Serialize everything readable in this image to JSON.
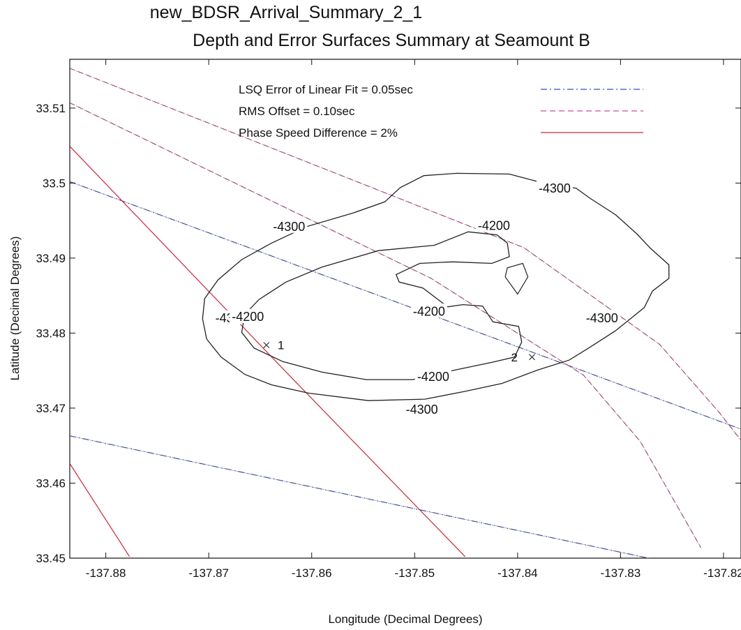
{
  "title_line1": "new_BDSR_Arrival_Summary_2_1",
  "title_line2": "Depth and Error Surfaces Summary at Seamount B",
  "chart_data": {
    "type": "line",
    "xlabel": "Longitude (Decimal Degrees)",
    "ylabel": "Latitude (Decimal Degrees)",
    "xlim": [
      -137.8835,
      -137.8183
    ],
    "ylim": [
      33.45,
      33.5165
    ],
    "xticks": [
      -137.88,
      -137.87,
      -137.86,
      -137.85,
      -137.84,
      -137.83,
      -137.82
    ],
    "xtick_labels": [
      "-137.88",
      "-137.87",
      "-137.86",
      "-137.85",
      "-137.84",
      "-137.83",
      "-137.82"
    ],
    "yticks": [
      33.45,
      33.46,
      33.47,
      33.48,
      33.49,
      33.5,
      33.51
    ],
    "ytick_labels": [
      "33.45",
      "33.46",
      "33.47",
      "33.48",
      "33.49",
      "33.5",
      "33.51"
    ],
    "grid": false,
    "legend_position": "top",
    "legend": [
      {
        "text": "LSQ Error of Linear Fit = 0.05sec",
        "style": "dash-dot",
        "color": "#3a4fc0"
      },
      {
        "text": "RMS Offset = 0.10sec",
        "style": "dashed",
        "color": "#d04a9a"
      },
      {
        "text": "Phase Speed Difference = 2%",
        "style": "solid",
        "color": "#c8283c"
      }
    ],
    "error_lines": [
      {
        "kind": "lsq",
        "points": [
          [
            -137.8835,
            33.5002
          ],
          [
            -137.8183,
            33.4672
          ]
        ]
      },
      {
        "kind": "lsq",
        "points": [
          [
            -137.8835,
            33.4663
          ],
          [
            -137.8183,
            33.4474
          ]
        ]
      },
      {
        "kind": "rms",
        "points": [
          [
            -137.8835,
            33.5153
          ],
          [
            -137.8394,
            33.4914
          ],
          [
            -137.8262,
            33.4785
          ],
          [
            -137.8204,
            33.4694
          ],
          [
            -137.8183,
            33.4657
          ]
        ]
      },
      {
        "kind": "rms",
        "points": [
          [
            -137.8835,
            33.5107
          ],
          [
            -137.8484,
            33.4873
          ],
          [
            -137.8336,
            33.4744
          ],
          [
            -137.8281,
            33.4656
          ],
          [
            -137.8239,
            33.4555
          ],
          [
            -137.8222,
            33.4514
          ]
        ]
      },
      {
        "kind": "phase",
        "points": [
          [
            -137.8835,
            33.5049
          ],
          [
            -137.8622,
            33.4744
          ],
          [
            -137.8451,
            33.4502
          ]
        ]
      },
      {
        "kind": "phase",
        "points": [
          [
            -137.8835,
            33.4626
          ],
          [
            -137.8777,
            33.4502
          ]
        ]
      }
    ],
    "contours": [
      {
        "level": -4300,
        "labels": [
          [
            -137.8364,
            33.4993
          ],
          [
            -137.8622,
            33.4942
          ],
          [
            -137.8678,
            33.482
          ],
          [
            -137.8318,
            33.482
          ],
          [
            -137.8493,
            33.4698
          ]
        ],
        "points": [
          [
            -137.8459,
            33.5013
          ],
          [
            -137.8408,
            33.5012
          ],
          [
            -137.8375,
            33.5
          ],
          [
            -137.8343,
            33.4993
          ],
          [
            -137.833,
            33.498
          ],
          [
            -137.8305,
            33.4958
          ],
          [
            -137.8284,
            33.4932
          ],
          [
            -137.8271,
            33.4913
          ],
          [
            -137.8253,
            33.4891
          ],
          [
            -137.8253,
            33.4873
          ],
          [
            -137.8269,
            33.4856
          ],
          [
            -137.8277,
            33.4834
          ],
          [
            -137.8305,
            33.4803
          ],
          [
            -137.833,
            33.4781
          ],
          [
            -137.835,
            33.4764
          ],
          [
            -137.838,
            33.4751
          ],
          [
            -137.8415,
            33.4733
          ],
          [
            -137.8452,
            33.4722
          ],
          [
            -137.849,
            33.4712
          ],
          [
            -137.8545,
            33.471
          ],
          [
            -137.8603,
            33.472
          ],
          [
            -137.8639,
            33.4731
          ],
          [
            -137.8665,
            33.4745
          ],
          [
            -137.8688,
            33.4768
          ],
          [
            -137.8702,
            33.4792
          ],
          [
            -137.8706,
            33.4819
          ],
          [
            -137.8704,
            33.4846
          ],
          [
            -137.8691,
            33.4871
          ],
          [
            -137.8668,
            33.4898
          ],
          [
            -137.8639,
            33.492
          ],
          [
            -137.8605,
            33.4942
          ],
          [
            -137.856,
            33.496
          ],
          [
            -137.8529,
            33.4975
          ],
          [
            -137.8514,
            33.4994
          ],
          [
            -137.8491,
            33.501
          ],
          [
            -137.8459,
            33.5013
          ]
        ]
      },
      {
        "level": -4200,
        "labels": [
          [
            -137.8423,
            33.4943
          ],
          [
            -137.8486,
            33.4829
          ],
          [
            -137.8662,
            33.4822
          ],
          [
            -137.8482,
            33.4742
          ]
        ],
        "points": [
          [
            -137.8481,
            33.4917
          ],
          [
            -137.8535,
            33.491
          ],
          [
            -137.859,
            33.4888
          ],
          [
            -137.8625,
            33.4868
          ],
          [
            -137.8651,
            33.4845
          ],
          [
            -137.8665,
            33.4825
          ],
          [
            -137.8668,
            33.4801
          ],
          [
            -137.8656,
            33.478
          ],
          [
            -137.8628,
            33.4762
          ],
          [
            -137.859,
            33.4748
          ],
          [
            -137.8547,
            33.4738
          ],
          [
            -137.8502,
            33.4738
          ],
          [
            -137.846,
            33.4751
          ],
          [
            -137.8425,
            33.4761
          ],
          [
            -137.8403,
            33.4768
          ],
          [
            -137.8396,
            33.4788
          ],
          [
            -137.8399,
            33.4809
          ],
          [
            -137.8424,
            33.4815
          ],
          [
            -137.8434,
            33.4836
          ],
          [
            -137.8453,
            33.4838
          ],
          [
            -137.8468,
            33.4835
          ],
          [
            -137.8492,
            33.486
          ],
          [
            -137.8515,
            33.4868
          ],
          [
            -137.8518,
            33.4878
          ],
          [
            -137.8495,
            33.4893
          ],
          [
            -137.8463,
            33.4895
          ],
          [
            -137.8425,
            33.4893
          ],
          [
            -137.8408,
            33.4902
          ],
          [
            -137.841,
            33.492
          ],
          [
            -137.842,
            33.4931
          ],
          [
            -137.8448,
            33.4935
          ],
          [
            -137.8481,
            33.4917
          ]
        ]
      }
    ],
    "small_contour": [
      [
        -137.8412,
        33.4875
      ],
      [
        -137.84,
        33.4852
      ],
      [
        -137.839,
        33.4875
      ],
      [
        -137.8395,
        33.4893
      ],
      [
        -137.841,
        33.4887
      ],
      [
        -137.8412,
        33.4875
      ]
    ],
    "stations": [
      {
        "label": "1",
        "lon": -137.8644,
        "lat": 33.4784
      },
      {
        "label": "2",
        "lon": -137.8386,
        "lat": 33.4768
      }
    ]
  }
}
